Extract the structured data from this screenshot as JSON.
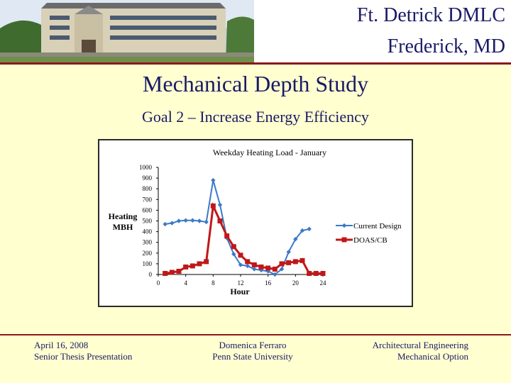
{
  "header": {
    "title_line1": "Ft. Detrick DMLC",
    "title_line2": "Frederick, MD"
  },
  "slide": {
    "title": "Mechanical Depth Study",
    "subtitle": "Goal 2 – Increase Energy Efficiency"
  },
  "colors": {
    "title_text": "#1a1a66",
    "background": "#ffffd0",
    "rule": "#8a1a1a",
    "series_current": "#3a7ac8",
    "series_doas": "#c01818"
  },
  "chart_data": {
    "type": "line",
    "title": "Weekday Heating Load - January",
    "xlabel": "Hour",
    "ylabel": "Heating MBH",
    "ylabel_lines": [
      "Heating",
      "MBH"
    ],
    "xlim": [
      0,
      24
    ],
    "ylim": [
      0,
      1000
    ],
    "xticks": [
      0,
      4,
      8,
      12,
      16,
      20,
      24
    ],
    "yticks": [
      0,
      100,
      200,
      300,
      400,
      500,
      600,
      700,
      800,
      900,
      1000
    ],
    "grid": false,
    "legend_position": "right",
    "x": [
      1,
      2,
      3,
      4,
      5,
      6,
      7,
      8,
      9,
      10,
      11,
      12,
      13,
      14,
      15,
      16,
      17,
      18,
      19,
      20,
      21,
      22,
      23,
      24
    ],
    "series": [
      {
        "name": "Current Design",
        "marker": "diamond",
        "values": [
          470,
          480,
          500,
          505,
          505,
          500,
          490,
          880,
          650,
          340,
          190,
          90,
          80,
          50,
          40,
          30,
          0,
          50,
          210,
          330,
          410,
          425,
          null,
          null
        ]
      },
      {
        "name": "DOAS/CB",
        "marker": "square",
        "values": [
          10,
          20,
          30,
          70,
          80,
          100,
          120,
          640,
          500,
          360,
          260,
          180,
          120,
          90,
          70,
          60,
          50,
          100,
          110,
          120,
          130,
          10,
          10,
          10
        ]
      }
    ]
  },
  "footer": {
    "left_line1": "April 16, 2008",
    "left_line2": "Senior Thesis Presentation",
    "center_line1": "Domenica Ferraro",
    "center_line2": "Penn State University",
    "right_line1": "Architectural Engineering",
    "right_line2": "Mechanical Option"
  }
}
